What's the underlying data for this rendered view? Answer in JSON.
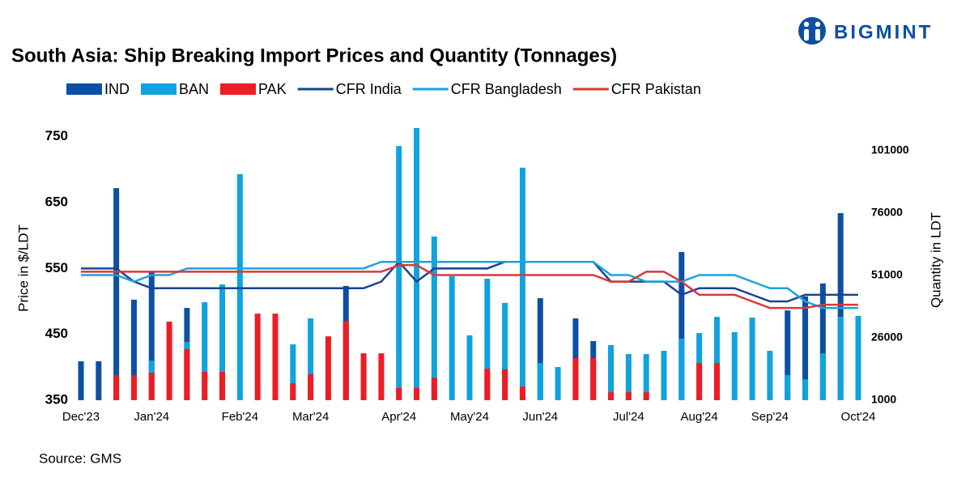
{
  "brand": "BIGMINT",
  "source": "Source: GMS",
  "chart_data": {
    "type": "bar",
    "title": "South Asia: Ship Breaking Import Prices and Quantity (Tonnages)",
    "y_label": "Price in $/LDT",
    "y2_label": "Quantity in LDT",
    "categories": [
      "Dec'23",
      null,
      null,
      null,
      "Jan'24",
      null,
      null,
      null,
      null,
      "Feb'24",
      null,
      null,
      null,
      "Mar'24",
      null,
      null,
      null,
      null,
      "Apr'24",
      null,
      null,
      null,
      "May'24",
      null,
      null,
      null,
      "Jun'24",
      null,
      null,
      null,
      null,
      "Jul'24",
      null,
      null,
      null,
      "Aug'24",
      null,
      null,
      null,
      "Sep'24",
      null,
      null,
      null,
      null,
      "Oct'24"
    ],
    "ylim": [
      350,
      773
    ],
    "yticks": [
      350,
      450,
      550,
      650,
      750
    ],
    "y2lim": [
      1000,
      112700
    ],
    "y2ticks": [
      1000,
      26000,
      51000,
      76000,
      101000
    ],
    "series": [
      {
        "name": "IND",
        "type": "bar",
        "axis": "y2",
        "color": "#0d4fa3",
        "values": [
          16600,
          16600,
          86000,
          41300,
          52300,
          null,
          38000,
          null,
          null,
          null,
          null,
          null,
          null,
          null,
          null,
          46800,
          null,
          null,
          null,
          null,
          null,
          null,
          null,
          null,
          null,
          null,
          41900,
          null,
          33800,
          24700,
          null,
          null,
          null,
          null,
          60400,
          null,
          null,
          null,
          null,
          null,
          37000,
          42600,
          47800,
          76000,
          null
        ]
      },
      {
        "name": "BAN",
        "type": "bar",
        "axis": "y2",
        "color": "#10a3dd",
        "values": [
          null,
          null,
          null,
          null,
          16900,
          null,
          24400,
          40300,
          47400,
          91600,
          null,
          null,
          23400,
          33800,
          null,
          null,
          null,
          null,
          102900,
          110100,
          66600,
          50700,
          27000,
          49700,
          40000,
          94200,
          15900,
          14300,
          null,
          null,
          23100,
          19500,
          19500,
          20800,
          25700,
          27900,
          34400,
          28300,
          34100,
          20800,
          11100,
          9400,
          19800,
          34400,
          34800
        ]
      },
      {
        "name": "PAK",
        "type": "bar",
        "axis": "y2",
        "color": "#ee1c25",
        "values": [
          null,
          null,
          11000,
          11000,
          12000,
          32500,
          21500,
          12400,
          12400,
          null,
          35700,
          35700,
          7800,
          11400,
          26600,
          32800,
          19800,
          19800,
          5900,
          5900,
          10100,
          null,
          null,
          13700,
          13400,
          6500,
          null,
          null,
          17900,
          17900,
          4200,
          4200,
          4200,
          null,
          null,
          15900,
          15900,
          null,
          null,
          null,
          null,
          null,
          null,
          null,
          null
        ]
      },
      {
        "name": "CFR India",
        "type": "line",
        "color": "#16448f",
        "values": [
          550,
          550,
          550,
          530,
          520,
          520,
          520,
          520,
          520,
          520,
          520,
          520,
          520,
          520,
          520,
          520,
          520,
          530,
          560,
          530,
          550,
          550,
          550,
          550,
          560,
          560,
          560,
          560,
          560,
          560,
          530,
          530,
          530,
          530,
          510,
          520,
          520,
          520,
          510,
          500,
          500,
          510,
          510,
          510,
          510
        ]
      },
      {
        "name": "CFR Bangladesh",
        "type": "line",
        "color": "#1aa3dd",
        "values": [
          540,
          540,
          540,
          530,
          540,
          540,
          550,
          550,
          550,
          550,
          550,
          550,
          550,
          550,
          550,
          550,
          550,
          560,
          560,
          560,
          560,
          560,
          560,
          560,
          560,
          560,
          560,
          560,
          560,
          560,
          540,
          540,
          530,
          530,
          530,
          540,
          540,
          540,
          530,
          520,
          520,
          500,
          490,
          490,
          490
        ]
      },
      {
        "name": "CFR Pakistan",
        "type": "line",
        "color": "#d8393b",
        "values": [
          545,
          545,
          545,
          545,
          545,
          545,
          545,
          545,
          545,
          545,
          545,
          545,
          545,
          545,
          545,
          545,
          545,
          545,
          555,
          555,
          540,
          540,
          540,
          540,
          540,
          540,
          540,
          540,
          540,
          540,
          530,
          530,
          545,
          545,
          530,
          510,
          510,
          510,
          500,
          490,
          490,
          490,
          495,
          495,
          495
        ]
      }
    ]
  }
}
